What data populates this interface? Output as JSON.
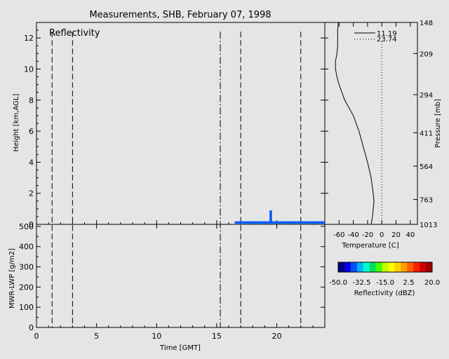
{
  "title": "Measurements, SHB, February 07, 1998",
  "reflectivity_panel": {
    "label": "Reflectivity",
    "ylabel": "Height [km,AGL]",
    "yticks": [
      "0",
      "2",
      "4",
      "6",
      "8",
      "10",
      "12"
    ],
    "dashed_times_gmt": [
      1.3,
      3.0,
      17.0,
      22.0
    ],
    "dashdot_times_gmt": [
      15.3
    ]
  },
  "lwp_panel": {
    "ylabel": "MWR-LWP [g/m2]",
    "yticks": [
      "0",
      "100",
      "200",
      "300",
      "400",
      "500"
    ],
    "xlabel": "Time [GMT]",
    "xticks": [
      "0",
      "5",
      "10",
      "15",
      "20"
    ]
  },
  "temperature_panel": {
    "xlabel": "Temperature [C]",
    "xticks": [
      "-60",
      "-40",
      "-20",
      "0",
      "20",
      "40"
    ],
    "right_label": "Pressure [mb]",
    "pressure_ticks": [
      "148",
      "209",
      "294",
      "411",
      "564",
      "763",
      "1013"
    ],
    "legend": [
      {
        "label": "11.19",
        "style": "solid"
      },
      {
        "label": "23.74",
        "style": "dotted"
      }
    ]
  },
  "colorbar": {
    "ticks": [
      "-50.0",
      "-32.5",
      "-15.0",
      "2.5",
      "20.0"
    ],
    "label": "Reflectivity (dBZ)",
    "colors": [
      "#000080",
      "#0000e0",
      "#0050ff",
      "#00b0ff",
      "#00ffd0",
      "#00e060",
      "#40ff00",
      "#c0ff00",
      "#ffff00",
      "#ffd000",
      "#ffa000",
      "#ff6000",
      "#ff2000",
      "#d00000",
      "#a00000"
    ]
  },
  "chart_data": [
    {
      "type": "area",
      "title": "Reflectivity",
      "xlabel": "Time [GMT]",
      "ylabel": "Height [km,AGL]",
      "xlim": [
        0,
        24
      ],
      "ylim": [
        0,
        13
      ],
      "echoes": [
        {
          "t_start": 16.5,
          "t_end": 24.0,
          "top_km": 0.2,
          "color": "#0060ff"
        },
        {
          "t_start": 19.4,
          "t_end": 19.6,
          "top_km": 0.9,
          "color": "#0050ff"
        }
      ]
    },
    {
      "type": "line",
      "xlabel": "Time [GMT]",
      "ylabel": "MWR-LWP [g/m2]",
      "xlim": [
        0,
        24
      ],
      "ylim": [
        0,
        510
      ],
      "x": [],
      "y": []
    },
    {
      "type": "line",
      "xlabel": "Temperature [C]",
      "ylabel": "Pressure [mb]",
      "xlim": [
        -80,
        50
      ],
      "ylim": [
        0,
        13
      ],
      "series": [
        {
          "name": "11.19",
          "style": "solid",
          "points": [
            [
              -15,
              0
            ],
            [
              -13,
              0.5
            ],
            [
              -12,
              1
            ],
            [
              -11,
              1.5
            ],
            [
              -12,
              2
            ],
            [
              -15,
              3
            ],
            [
              -20,
              4
            ],
            [
              -26,
              5
            ],
            [
              -32,
              6
            ],
            [
              -40,
              7
            ],
            [
              -52,
              8
            ],
            [
              -60,
              9
            ],
            [
              -63,
              9.5
            ],
            [
              -65,
              10
            ],
            [
              -65,
              10.5
            ],
            [
              -63,
              11
            ],
            [
              -62,
              11.5
            ],
            [
              -62,
              12
            ],
            [
              -62,
              12.5
            ],
            [
              -61,
              13
            ]
          ]
        },
        {
          "name": "23.74",
          "style": "dotted",
          "points": [
            [
              0,
              0
            ],
            [
              0,
              2
            ],
            [
              0,
              4
            ],
            [
              0,
              6
            ],
            [
              0,
              8
            ],
            [
              0,
              10
            ],
            [
              0,
              11.8
            ]
          ]
        }
      ]
    }
  ]
}
